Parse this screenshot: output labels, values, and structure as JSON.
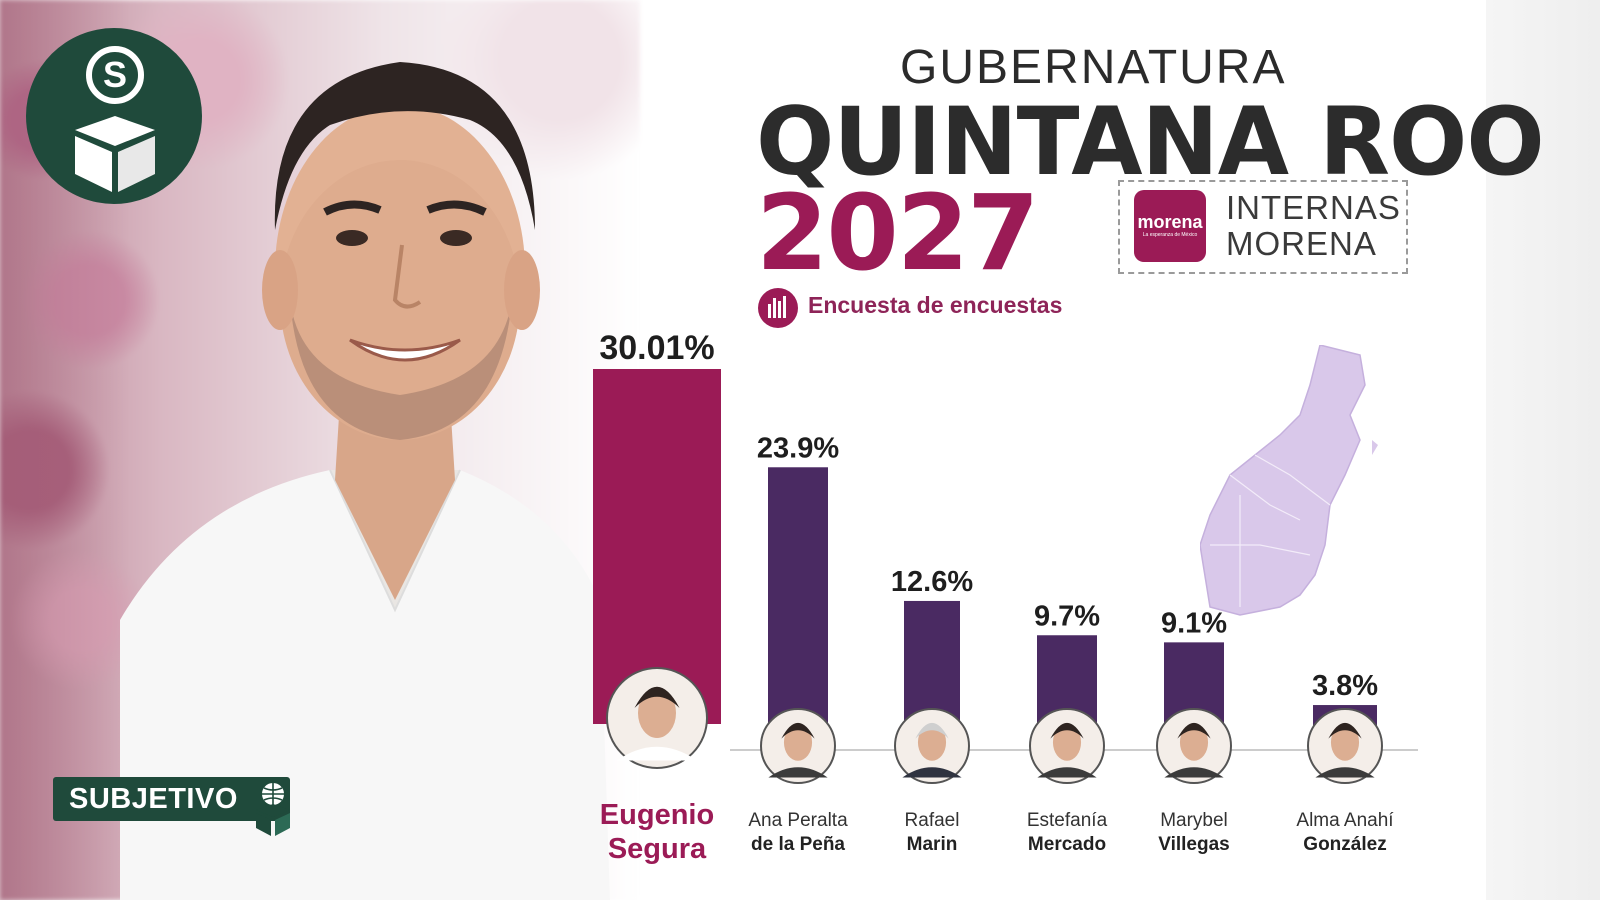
{
  "header": {
    "line1": "GUBERNATURA",
    "line2": "QUINTANA ROO",
    "year": "2027",
    "badge_logo": "morena",
    "badge_logo_sub": "La esperanza de México",
    "badge_line1": "INTERNAS",
    "badge_line2": "MORENA",
    "survey_label": "Encuesta de encuestas",
    "survey_icon": "bar-chart-circle-icon"
  },
  "branding": {
    "corner_logo_letter": "S",
    "footer_logo": "SUBJETIVO"
  },
  "colors": {
    "leader_bar": "#9b1b56",
    "other_bars": "#4a2a62",
    "brand_green": "#1f4a3b",
    "map_fill": "#d9c8ea"
  },
  "chart_data": {
    "type": "bar",
    "title": "Encuesta de encuestas",
    "categories": [
      "Eugenio Segura",
      "Ana Peralta de la Peña",
      "Rafael Marin",
      "Estefanía Mercado",
      "Marybel Villegas",
      "Alma Anahí González"
    ],
    "values": [
      30.01,
      23.9,
      12.6,
      9.7,
      9.1,
      3.8
    ],
    "value_labels": [
      "30.01%",
      "23.9%",
      "12.6%",
      "9.7%",
      "9.1%",
      "3.8%"
    ],
    "names_first": [
      "Eugenio",
      "Ana Peralta",
      "Rafael",
      "Estefanía",
      "Marybel",
      "Alma Anahí"
    ],
    "names_last": [
      "Segura",
      "de la Peña",
      "Marin",
      "Mercado",
      "Villegas",
      "González"
    ],
    "unit": "%",
    "ylim": [
      0,
      30.01
    ],
    "grid": false,
    "legend": "none"
  }
}
